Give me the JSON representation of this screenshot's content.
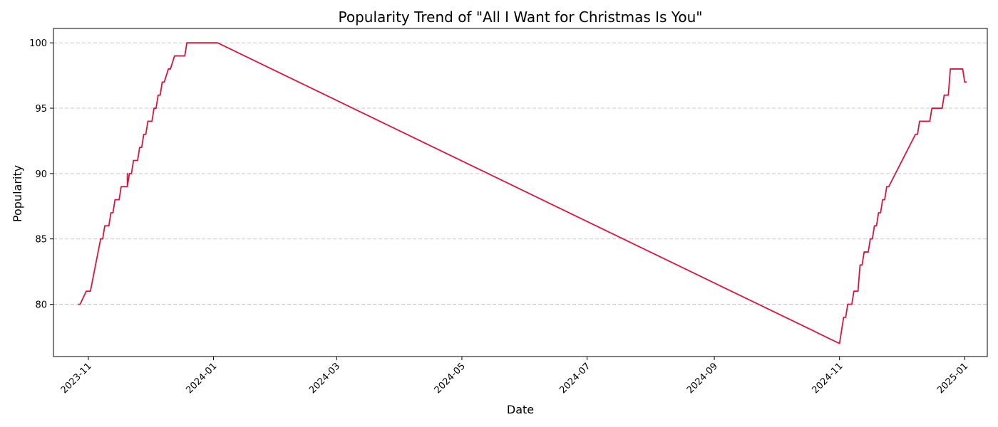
{
  "chart_data": {
    "type": "line",
    "title": "Popularity Trend of \"All I Want for Christmas Is You\"",
    "xlabel": "Date",
    "ylabel": "Popularity",
    "x_axis_type": "date",
    "xlim": [
      "2023-10-15",
      "2025-01-12"
    ],
    "ylim": [
      76.0,
      101.1
    ],
    "yticks": [
      80,
      85,
      90,
      95,
      100
    ],
    "xticks": [
      "2023-11",
      "2024-01",
      "2024-03",
      "2024-05",
      "2024-07",
      "2024-09",
      "2024-11",
      "2025-01"
    ],
    "grid": "y-dashed",
    "legend": "none",
    "line_color": "#dc143c",
    "series": [
      {
        "points": [
          [
            "2023-10-27",
            80
          ],
          [
            "2023-10-28",
            80
          ],
          [
            "2023-10-31",
            81
          ],
          [
            "2023-11-01",
            81
          ],
          [
            "2023-11-02",
            81
          ],
          [
            "2023-11-07",
            85
          ],
          [
            "2023-11-08",
            85
          ],
          [
            "2023-11-09",
            86
          ],
          [
            "2023-11-11",
            86
          ],
          [
            "2023-11-12",
            87
          ],
          [
            "2023-11-13",
            87
          ],
          [
            "2023-11-14",
            88
          ],
          [
            "2023-11-16",
            88
          ],
          [
            "2023-11-17",
            89
          ],
          [
            "2023-11-19",
            89
          ],
          [
            "2023-11-20",
            89
          ],
          [
            "2023-11-20",
            90
          ],
          [
            "2023-11-20",
            89
          ],
          [
            "2023-11-21",
            90
          ],
          [
            "2023-11-22",
            90
          ],
          [
            "2023-11-23",
            91
          ],
          [
            "2023-11-25",
            91
          ],
          [
            "2023-11-26",
            92
          ],
          [
            "2023-11-27",
            92
          ],
          [
            "2023-11-28",
            93
          ],
          [
            "2023-11-29",
            93
          ],
          [
            "2023-11-30",
            94
          ],
          [
            "2023-12-02",
            94
          ],
          [
            "2023-12-03",
            95
          ],
          [
            "2023-12-04",
            95
          ],
          [
            "2023-12-05",
            96
          ],
          [
            "2023-12-06",
            96
          ],
          [
            "2023-12-07",
            97
          ],
          [
            "2023-12-08",
            97
          ],
          [
            "2023-12-10",
            98
          ],
          [
            "2023-12-11",
            98
          ],
          [
            "2023-12-13",
            99
          ],
          [
            "2023-12-18",
            99
          ],
          [
            "2023-12-19",
            100
          ],
          [
            "2024-01-03",
            100
          ],
          [
            "2024-11-01",
            77
          ],
          [
            "2024-11-03",
            79
          ],
          [
            "2024-11-04",
            79
          ],
          [
            "2024-11-05",
            80
          ],
          [
            "2024-11-07",
            80
          ],
          [
            "2024-11-08",
            81
          ],
          [
            "2024-11-10",
            81
          ],
          [
            "2024-11-11",
            83
          ],
          [
            "2024-11-12",
            83
          ],
          [
            "2024-11-13",
            84
          ],
          [
            "2024-11-15",
            84
          ],
          [
            "2024-11-16",
            85
          ],
          [
            "2024-11-17",
            85
          ],
          [
            "2024-11-18",
            86
          ],
          [
            "2024-11-19",
            86
          ],
          [
            "2024-11-20",
            87
          ],
          [
            "2024-11-21",
            87
          ],
          [
            "2024-11-22",
            88
          ],
          [
            "2024-11-23",
            88
          ],
          [
            "2024-11-24",
            89
          ],
          [
            "2024-11-25",
            89
          ],
          [
            "2024-12-08",
            93
          ],
          [
            "2024-12-09",
            93
          ],
          [
            "2024-12-10",
            94
          ],
          [
            "2024-12-15",
            94
          ],
          [
            "2024-12-16",
            95
          ],
          [
            "2024-12-21",
            95
          ],
          [
            "2024-12-22",
            96
          ],
          [
            "2024-12-24",
            96
          ],
          [
            "2024-12-25",
            98
          ],
          [
            "2024-12-31",
            98
          ],
          [
            "2025-01-01",
            97
          ],
          [
            "2025-01-02",
            97
          ]
        ]
      }
    ]
  }
}
